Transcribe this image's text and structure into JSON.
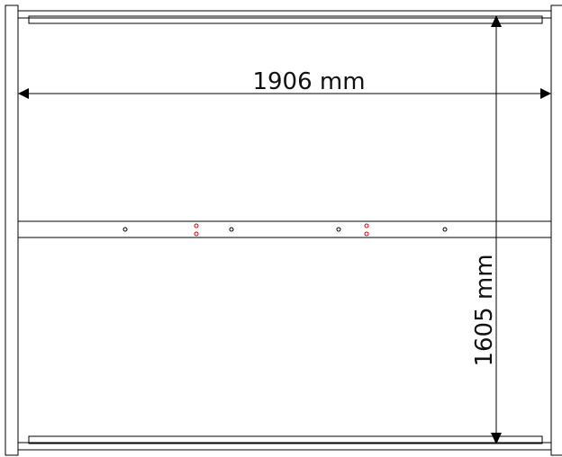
{
  "drawing": {
    "width_dimension_label": "1906 mm",
    "height_dimension_label": "1605 mm"
  },
  "colors": {
    "line": "#000000",
    "hole_black": "#000000",
    "hole_red": "#e00000",
    "background": "#ffffff"
  },
  "holes": {
    "black_count": 4,
    "red_pairs_count": 2
  }
}
